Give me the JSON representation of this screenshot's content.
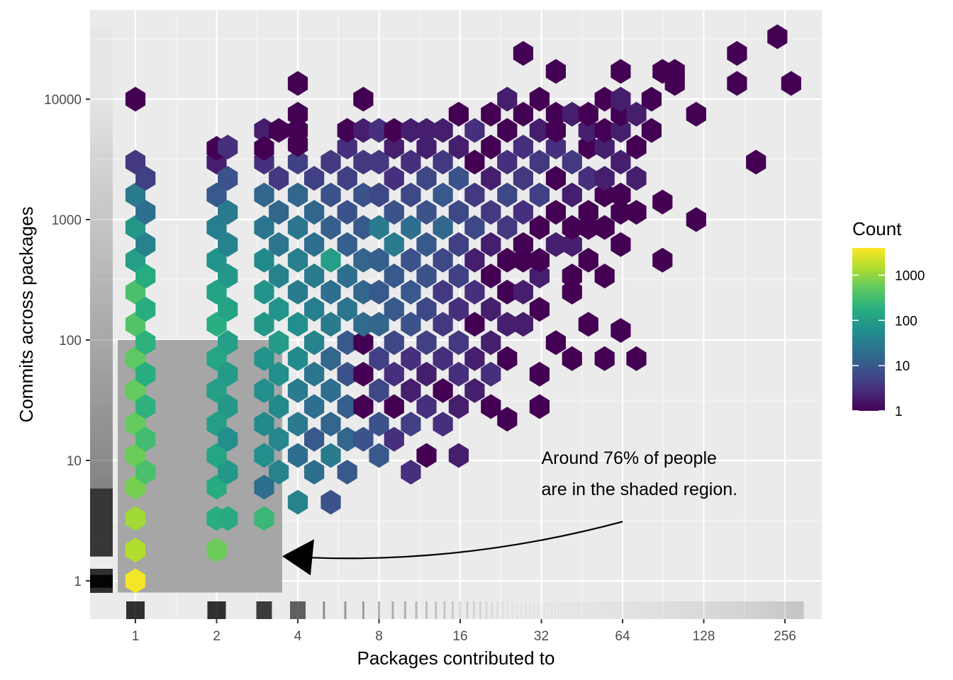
{
  "chart_data": {
    "type": "heatmap",
    "subtype": "hexbin",
    "xlabel": "Packages contributed to",
    "ylabel": "Commits across packages",
    "x_scale": "log2",
    "y_scale": "log10",
    "xlim": [
      0.75,
      340
    ],
    "ylim": [
      0.5,
      40000
    ],
    "x_ticks": [
      {
        "value": 1,
        "label": "1"
      },
      {
        "value": 2,
        "label": "2"
      },
      {
        "value": 4,
        "label": "4"
      },
      {
        "value": 8,
        "label": "8"
      },
      {
        "value": 16,
        "label": "16"
      },
      {
        "value": 32,
        "label": "32"
      },
      {
        "value": 64,
        "label": "64"
      },
      {
        "value": 128,
        "label": "128"
      },
      {
        "value": 256,
        "label": "256"
      }
    ],
    "y_ticks": [
      {
        "value": 1,
        "label": "1"
      },
      {
        "value": 10,
        "label": "10"
      },
      {
        "value": 100,
        "label": "100"
      },
      {
        "value": 1000,
        "label": "1000"
      },
      {
        "value": 10000,
        "label": "10000"
      }
    ],
    "grid": true,
    "background_color": "#ebebeb",
    "colorscale": "viridis",
    "legend": {
      "title": "Count",
      "position": "right",
      "scale": "log10",
      "range": [
        1,
        4000
      ],
      "ticks": [
        {
          "value": 1,
          "label": "1"
        },
        {
          "value": 10,
          "label": "10"
        },
        {
          "value": 100,
          "label": "100"
        },
        {
          "value": 1000,
          "label": "1000"
        }
      ]
    },
    "shaded_region": {
      "x": [
        0.86,
        3.5
      ],
      "y": [
        0.8,
        100
      ],
      "color": "#a6a6a6"
    },
    "annotation": {
      "lines": [
        "Around 76% of people",
        "are in the shaded region."
      ],
      "arrow_from": {
        "x": 64,
        "y": 3.1
      },
      "arrow_to": {
        "x": 3.5,
        "y": 1.6
      }
    },
    "hexbins": [
      [
        1,
        1,
        3500
      ],
      [
        1,
        1.8,
        1500
      ],
      [
        1,
        3.3,
        1200
      ],
      [
        1,
        6,
        700
      ],
      [
        1,
        11,
        600
      ],
      [
        1,
        20,
        550
      ],
      [
        1,
        38,
        550
      ],
      [
        1,
        70,
        500
      ],
      [
        1,
        135,
        400
      ],
      [
        1,
        250,
        350
      ],
      [
        1,
        460,
        100
      ],
      [
        1,
        860,
        80
      ],
      [
        1,
        1600,
        30
      ],
      [
        1,
        3000,
        4
      ],
      [
        1,
        10000,
        1
      ],
      [
        1.09,
        8,
        350
      ],
      [
        1.09,
        15,
        300
      ],
      [
        1.09,
        28,
        200
      ],
      [
        1.09,
        52,
        180
      ],
      [
        1.09,
        95,
        200
      ],
      [
        1.09,
        180,
        170
      ],
      [
        1.09,
        340,
        160
      ],
      [
        1.09,
        620,
        40
      ],
      [
        1.09,
        1150,
        20
      ],
      [
        1.09,
        2200,
        5
      ],
      [
        2,
        1.8,
        600
      ],
      [
        2,
        3.3,
        180
      ],
      [
        2,
        6,
        160
      ],
      [
        2,
        11,
        130
      ],
      [
        2,
        20,
        100
      ],
      [
        2,
        38,
        110
      ],
      [
        2,
        70,
        130
      ],
      [
        2,
        135,
        180
      ],
      [
        2,
        250,
        120
      ],
      [
        2,
        460,
        70
      ],
      [
        2,
        860,
        35
      ],
      [
        2,
        1600,
        10
      ],
      [
        2,
        3000,
        2
      ],
      [
        2,
        3900,
        1
      ],
      [
        2.2,
        3.3,
        150
      ],
      [
        2.2,
        8,
        80
      ],
      [
        2.2,
        15,
        60
      ],
      [
        2.2,
        28,
        80
      ],
      [
        2.2,
        52,
        90
      ],
      [
        2.2,
        95,
        100
      ],
      [
        2.2,
        180,
        120
      ],
      [
        2.2,
        340,
        80
      ],
      [
        2.2,
        620,
        40
      ],
      [
        2.2,
        1150,
        30
      ],
      [
        2.2,
        2200,
        8
      ],
      [
        2.2,
        4000,
        3
      ],
      [
        3,
        3.3,
        250
      ],
      [
        3,
        6,
        20
      ],
      [
        3,
        11,
        60
      ],
      [
        3,
        20,
        50
      ],
      [
        3,
        38,
        60
      ],
      [
        3,
        70,
        70
      ],
      [
        3,
        135,
        80
      ],
      [
        3,
        250,
        70
      ],
      [
        3,
        460,
        50
      ],
      [
        3,
        860,
        25
      ],
      [
        3,
        1600,
        15
      ],
      [
        3,
        3000,
        3
      ],
      [
        3,
        5500,
        2
      ],
      [
        3,
        3900,
        1
      ],
      [
        3.4,
        8,
        40
      ],
      [
        3.4,
        15,
        45
      ],
      [
        3.4,
        28,
        50
      ],
      [
        3.4,
        52,
        60
      ],
      [
        3.4,
        95,
        90
      ],
      [
        3.4,
        180,
        70
      ],
      [
        3.4,
        340,
        40
      ],
      [
        3.4,
        620,
        25
      ],
      [
        3.4,
        1150,
        15
      ],
      [
        3.4,
        2200,
        4
      ],
      [
        3.4,
        5500,
        1
      ],
      [
        4,
        4.5,
        40
      ],
      [
        4,
        11,
        20
      ],
      [
        4,
        20,
        30
      ],
      [
        4,
        38,
        30
      ],
      [
        4,
        70,
        50
      ],
      [
        4,
        135,
        60
      ],
      [
        4,
        250,
        30
      ],
      [
        4,
        460,
        35
      ],
      [
        4,
        860,
        25
      ],
      [
        4,
        1600,
        15
      ],
      [
        4,
        3000,
        5
      ],
      [
        4,
        5500,
        1
      ],
      [
        4,
        7500,
        1
      ],
      [
        4,
        13500,
        1
      ],
      [
        4,
        4200,
        1
      ],
      [
        4.6,
        8,
        20
      ],
      [
        4.6,
        15,
        10
      ],
      [
        4.6,
        28,
        20
      ],
      [
        4.6,
        52,
        25
      ],
      [
        4.6,
        95,
        40
      ],
      [
        4.6,
        180,
        35
      ],
      [
        4.6,
        340,
        30
      ],
      [
        4.6,
        620,
        20
      ],
      [
        4.6,
        1150,
        15
      ],
      [
        4.6,
        2200,
        5
      ],
      [
        5.3,
        4.5,
        8
      ],
      [
        5.3,
        11,
        30
      ],
      [
        5.3,
        20,
        15
      ],
      [
        5.3,
        38,
        20
      ],
      [
        5.3,
        70,
        15
      ],
      [
        5.3,
        135,
        30
      ],
      [
        5.3,
        250,
        20
      ],
      [
        5.3,
        460,
        100
      ],
      [
        5.3,
        860,
        12
      ],
      [
        5.3,
        1600,
        8
      ],
      [
        5.3,
        3000,
        4
      ],
      [
        6.1,
        8,
        10
      ],
      [
        6.1,
        15,
        15
      ],
      [
        6.1,
        28,
        12
      ],
      [
        6.1,
        52,
        8
      ],
      [
        6.1,
        95,
        10
      ],
      [
        6.1,
        180,
        25
      ],
      [
        6.1,
        340,
        20
      ],
      [
        6.1,
        620,
        12
      ],
      [
        6.1,
        1150,
        8
      ],
      [
        6.1,
        2200,
        5
      ],
      [
        6.1,
        4000,
        3
      ],
      [
        6.1,
        5500,
        1
      ],
      [
        7,
        15,
        8
      ],
      [
        7,
        28,
        1
      ],
      [
        7,
        52,
        1
      ],
      [
        7,
        95,
        1
      ],
      [
        7,
        135,
        18
      ],
      [
        7,
        250,
        15
      ],
      [
        7,
        460,
        15
      ],
      [
        7,
        860,
        10
      ],
      [
        7,
        1600,
        8
      ],
      [
        7,
        3000,
        4
      ],
      [
        7,
        5500,
        2
      ],
      [
        7,
        10000,
        1
      ],
      [
        8,
        11,
        10
      ],
      [
        8,
        20,
        8
      ],
      [
        8,
        38,
        6
      ],
      [
        8,
        70,
        5
      ],
      [
        8,
        135,
        15
      ],
      [
        8,
        250,
        10
      ],
      [
        8,
        460,
        12
      ],
      [
        8,
        860,
        30
      ],
      [
        8,
        1600,
        6
      ],
      [
        8,
        3000,
        4
      ],
      [
        8,
        5500,
        3
      ],
      [
        9.1,
        15,
        3
      ],
      [
        9.1,
        28,
        1
      ],
      [
        9.1,
        52,
        3
      ],
      [
        9.1,
        95,
        6
      ],
      [
        9.1,
        180,
        10
      ],
      [
        9.1,
        340,
        10
      ],
      [
        9.1,
        620,
        30
      ],
      [
        9.1,
        1150,
        8
      ],
      [
        9.1,
        2200,
        3
      ],
      [
        9.1,
        4000,
        2
      ],
      [
        9.1,
        5500,
        1
      ],
      [
        10.5,
        8,
        3
      ],
      [
        10.5,
        20,
        5
      ],
      [
        10.5,
        38,
        2
      ],
      [
        10.5,
        70,
        3
      ],
      [
        10.5,
        135,
        8
      ],
      [
        10.5,
        250,
        10
      ],
      [
        10.5,
        460,
        8
      ],
      [
        10.5,
        860,
        20
      ],
      [
        10.5,
        1600,
        6
      ],
      [
        10.5,
        3000,
        3
      ],
      [
        10.5,
        5500,
        2
      ],
      [
        12,
        11,
        1
      ],
      [
        12,
        28,
        3
      ],
      [
        12,
        52,
        2
      ],
      [
        12,
        95,
        5
      ],
      [
        12,
        180,
        6
      ],
      [
        12,
        340,
        8
      ],
      [
        12,
        620,
        10
      ],
      [
        12,
        1150,
        8
      ],
      [
        12,
        2200,
        6
      ],
      [
        12,
        4000,
        2
      ],
      [
        12,
        5500,
        2
      ],
      [
        13.8,
        20,
        3
      ],
      [
        13.8,
        38,
        1
      ],
      [
        13.8,
        70,
        3
      ],
      [
        13.8,
        135,
        4
      ],
      [
        13.8,
        250,
        4
      ],
      [
        13.8,
        460,
        6
      ],
      [
        13.8,
        860,
        15
      ],
      [
        13.8,
        1600,
        10
      ],
      [
        13.8,
        3000,
        4
      ],
      [
        13.8,
        5500,
        2
      ],
      [
        15.8,
        11,
        2
      ],
      [
        15.8,
        28,
        2
      ],
      [
        15.8,
        52,
        3
      ],
      [
        15.8,
        95,
        4
      ],
      [
        15.8,
        180,
        3
      ],
      [
        15.8,
        340,
        5
      ],
      [
        15.8,
        620,
        5
      ],
      [
        15.8,
        1150,
        6
      ],
      [
        15.8,
        2200,
        8
      ],
      [
        15.8,
        4000,
        2
      ],
      [
        15.8,
        7500,
        1
      ],
      [
        18.1,
        38,
        2
      ],
      [
        18.1,
        70,
        2
      ],
      [
        18.1,
        135,
        1
      ],
      [
        18.1,
        250,
        3
      ],
      [
        18.1,
        460,
        2
      ],
      [
        18.1,
        860,
        6
      ],
      [
        18.1,
        1600,
        4
      ],
      [
        18.1,
        3000,
        1
      ],
      [
        18.1,
        5500,
        3
      ],
      [
        20.8,
        28,
        1
      ],
      [
        20.8,
        52,
        3
      ],
      [
        20.8,
        95,
        2
      ],
      [
        20.8,
        180,
        2
      ],
      [
        20.8,
        340,
        1
      ],
      [
        20.8,
        620,
        2
      ],
      [
        20.8,
        1150,
        4
      ],
      [
        20.8,
        2200,
        2
      ],
      [
        20.8,
        4000,
        1
      ],
      [
        20.8,
        7500,
        1
      ],
      [
        23.9,
        22,
        1
      ],
      [
        23.9,
        70,
        1
      ],
      [
        23.9,
        135,
        2
      ],
      [
        23.9,
        250,
        1
      ],
      [
        23.9,
        460,
        1
      ],
      [
        23.9,
        860,
        4
      ],
      [
        23.9,
        1600,
        6
      ],
      [
        23.9,
        3000,
        3
      ],
      [
        23.9,
        5500,
        1
      ],
      [
        23.9,
        10000,
        2
      ],
      [
        27.4,
        135,
        2
      ],
      [
        27.4,
        250,
        2
      ],
      [
        27.4,
        460,
        1
      ],
      [
        27.4,
        620,
        1
      ],
      [
        27.4,
        1150,
        3
      ],
      [
        27.4,
        2200,
        4
      ],
      [
        27.4,
        4000,
        3
      ],
      [
        27.4,
        7500,
        1
      ],
      [
        27.4,
        24000,
        1
      ],
      [
        31.5,
        28,
        1
      ],
      [
        31.5,
        52,
        1
      ],
      [
        31.5,
        180,
        1
      ],
      [
        31.5,
        340,
        2
      ],
      [
        31.5,
        460,
        1
      ],
      [
        31.5,
        860,
        1
      ],
      [
        31.5,
        1600,
        5
      ],
      [
        31.5,
        3000,
        4
      ],
      [
        31.5,
        5500,
        2
      ],
      [
        31.5,
        10000,
        1
      ],
      [
        36.2,
        95,
        1
      ],
      [
        36.2,
        620,
        2
      ],
      [
        36.2,
        1150,
        1
      ],
      [
        36.2,
        2200,
        1
      ],
      [
        36.2,
        4000,
        3
      ],
      [
        36.2,
        5500,
        1
      ],
      [
        36.2,
        7500,
        1
      ],
      [
        36.2,
        17000,
        1
      ],
      [
        41.6,
        70,
        1
      ],
      [
        41.6,
        250,
        1
      ],
      [
        41.6,
        340,
        1
      ],
      [
        41.6,
        620,
        2
      ],
      [
        41.6,
        860,
        1
      ],
      [
        41.6,
        1600,
        2
      ],
      [
        41.6,
        3000,
        4
      ],
      [
        41.6,
        7500,
        2
      ],
      [
        47.8,
        135,
        1
      ],
      [
        47.8,
        460,
        1
      ],
      [
        47.8,
        860,
        1
      ],
      [
        47.8,
        1150,
        1
      ],
      [
        47.8,
        2200,
        3
      ],
      [
        47.8,
        4000,
        1
      ],
      [
        47.8,
        5500,
        2
      ],
      [
        47.8,
        7500,
        1
      ],
      [
        54.9,
        70,
        1
      ],
      [
        54.9,
        340,
        1
      ],
      [
        54.9,
        860,
        1
      ],
      [
        54.9,
        1600,
        1
      ],
      [
        54.9,
        2200,
        2
      ],
      [
        54.9,
        4000,
        2
      ],
      [
        54.9,
        5500,
        1
      ],
      [
        54.9,
        10000,
        1
      ],
      [
        63,
        120,
        1
      ],
      [
        63,
        620,
        1
      ],
      [
        63,
        1150,
        1
      ],
      [
        63,
        1600,
        1
      ],
      [
        63,
        3000,
        2
      ],
      [
        63,
        5500,
        2
      ],
      [
        63,
        7500,
        1
      ],
      [
        63,
        10000,
        2
      ],
      [
        63,
        17000,
        1
      ],
      [
        72,
        70,
        1
      ],
      [
        72,
        1150,
        1
      ],
      [
        72,
        2200,
        2
      ],
      [
        72,
        4000,
        1
      ],
      [
        72,
        7500,
        2
      ],
      [
        82,
        5500,
        1
      ],
      [
        82,
        10000,
        1
      ],
      [
        90,
        1400,
        1
      ],
      [
        90,
        460,
        1
      ],
      [
        90,
        17000,
        1
      ],
      [
        100,
        13500,
        1
      ],
      [
        100,
        17000,
        1
      ],
      [
        120,
        1000,
        1
      ],
      [
        120,
        7500,
        1
      ],
      [
        170,
        13500,
        1
      ],
      [
        170,
        24000,
        1
      ],
      [
        200,
        3000,
        1
      ],
      [
        240,
        33000,
        1
      ],
      [
        270,
        13500,
        1
      ]
    ]
  }
}
